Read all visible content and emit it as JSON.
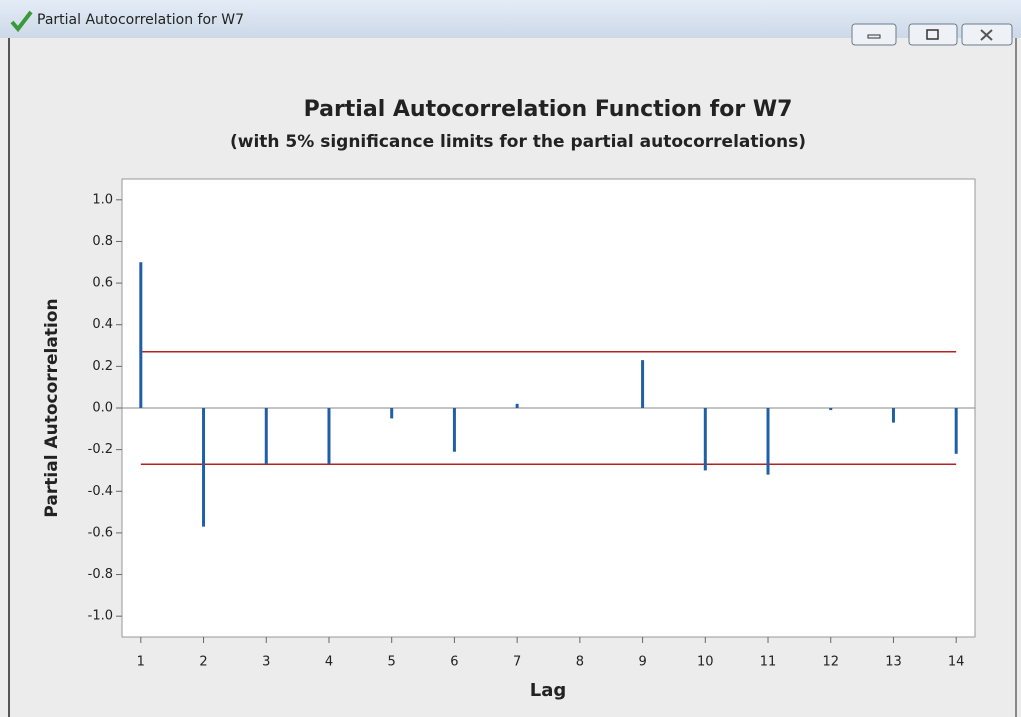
{
  "window": {
    "title": "Partial Autocorrelation for W7"
  },
  "chart_data": {
    "type": "pacf",
    "title": "Partial Autocorrelation Function for W7",
    "subtitle": "(with 5% significance limits for the partial autocorrelations)",
    "x_label": "Lag",
    "y_label": "Partial Autocorrelation",
    "x": [
      1,
      2,
      3,
      4,
      5,
      6,
      7,
      8,
      9,
      10,
      11,
      12,
      13,
      14
    ],
    "values": [
      0.7,
      -0.57,
      -0.27,
      -0.27,
      -0.05,
      -0.21,
      0.02,
      0.0,
      0.23,
      -0.3,
      -0.32,
      -0.01,
      -0.07,
      -0.22
    ],
    "color": "#1f5fa8",
    "limits": [
      -0.27,
      0.27
    ],
    "limit_color": "#b22222",
    "xlim": [
      0.7,
      14.3
    ],
    "xticks": [
      1,
      2,
      3,
      4,
      5,
      6,
      7,
      8,
      9,
      10,
      11,
      12,
      13,
      14
    ],
    "ylim": [
      -1.1,
      1.1
    ],
    "yticks": [
      {
        "value": -1,
        "label": "-1.0"
      },
      -0.8,
      -0.6,
      -0.4,
      -0.2,
      {
        "value": 0,
        "label": "0.0"
      },
      0.2,
      0.4,
      0.6,
      0.8,
      {
        "value": 1,
        "label": "1.0"
      }
    ]
  }
}
